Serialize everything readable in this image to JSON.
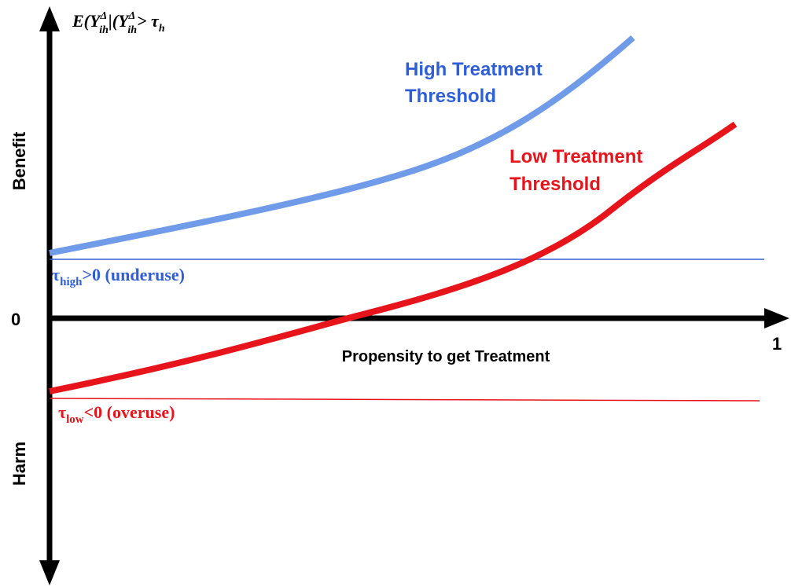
{
  "axes": {
    "y_label": {
      "parts": [
        "E(Y",
        "Δ",
        "ih",
        "|(Y",
        "Δ",
        "ih",
        "> τ",
        "h"
      ]
    },
    "benefit": "Benefit",
    "harm": "Harm",
    "zero": "0",
    "one": "1",
    "x_label": "Propensity to get Treatment"
  },
  "curves": [
    {
      "label": [
        "High Treatment",
        "Threshold"
      ],
      "color": "#6f9be8"
    },
    {
      "label": [
        "Low Treatment",
        "Threshold"
      ],
      "color": "#e8141b"
    }
  ],
  "thresholds": [
    {
      "symbol": "τ",
      "sub": "high",
      "text": ">0 (underuse)",
      "color": "#2f5fd8"
    },
    {
      "symbol": "τ",
      "sub": "low",
      "text": "<0 (overuse)",
      "color": "#e8141b"
    }
  ]
}
